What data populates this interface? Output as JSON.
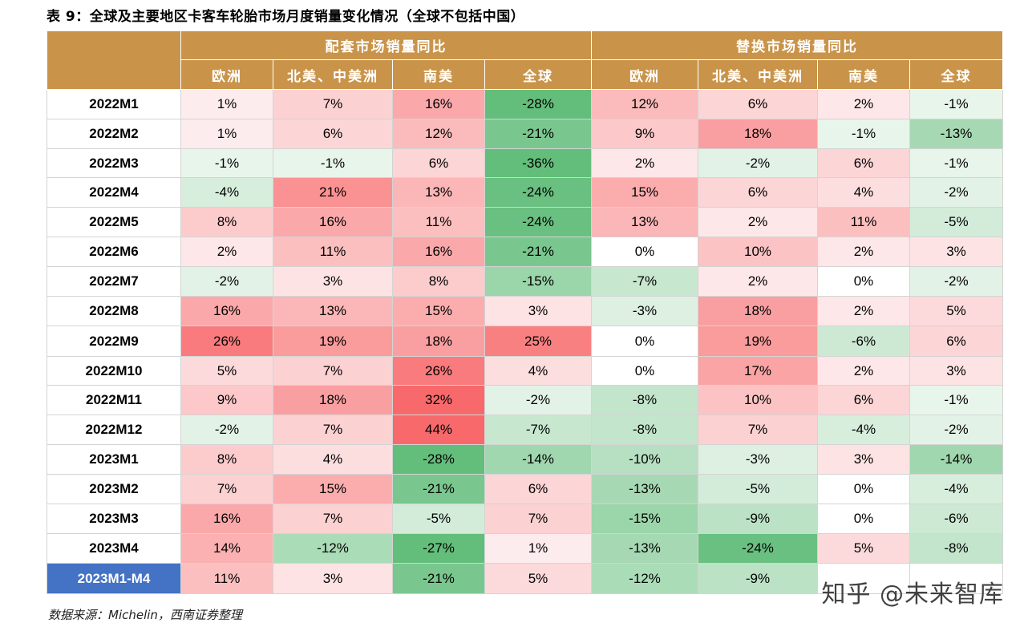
{
  "title": "表 9：全球及主要地区卡客车轮胎市场月度销量变化情况（全球不包括中国）",
  "groups": [
    "配套市场销量同比",
    "替换市场销量同比"
  ],
  "subheaders": [
    "欧洲",
    "北美、中美洲",
    "南美",
    "全球",
    "欧洲",
    "北美、中美洲",
    "南美",
    "全球"
  ],
  "rows": [
    {
      "label": "2022M1",
      "values": [
        1,
        7,
        16,
        -28,
        12,
        6,
        2,
        -1
      ]
    },
    {
      "label": "2022M2",
      "values": [
        1,
        6,
        12,
        -21,
        9,
        18,
        -1,
        -13
      ]
    },
    {
      "label": "2022M3",
      "values": [
        -1,
        -1,
        6,
        -36,
        2,
        -2,
        6,
        -1
      ]
    },
    {
      "label": "2022M4",
      "values": [
        -4,
        21,
        13,
        -24,
        15,
        6,
        4,
        -2
      ]
    },
    {
      "label": "2022M5",
      "values": [
        8,
        16,
        11,
        -24,
        13,
        2,
        11,
        -5
      ]
    },
    {
      "label": "2022M6",
      "values": [
        2,
        11,
        16,
        -21,
        0,
        10,
        2,
        3
      ]
    },
    {
      "label": "2022M7",
      "values": [
        -2,
        3,
        8,
        -15,
        -7,
        2,
        0,
        -2
      ]
    },
    {
      "label": "2022M8",
      "values": [
        16,
        13,
        15,
        3,
        -3,
        18,
        2,
        5
      ]
    },
    {
      "label": "2022M9",
      "values": [
        26,
        19,
        18,
        25,
        0,
        19,
        -6,
        6
      ]
    },
    {
      "label": "2022M10",
      "values": [
        5,
        7,
        26,
        4,
        0,
        17,
        2,
        3
      ]
    },
    {
      "label": "2022M11",
      "values": [
        9,
        18,
        32,
        -2,
        -8,
        10,
        6,
        -1
      ]
    },
    {
      "label": "2022M12",
      "values": [
        -2,
        7,
        44,
        -7,
        -8,
        7,
        -4,
        -2
      ]
    },
    {
      "label": "2023M1",
      "values": [
        8,
        4,
        -28,
        -14,
        -10,
        -3,
        3,
        -14
      ]
    },
    {
      "label": "2023M2",
      "values": [
        7,
        15,
        -21,
        6,
        -13,
        -5,
        0,
        -4
      ]
    },
    {
      "label": "2023M3",
      "values": [
        16,
        7,
        -5,
        7,
        -15,
        -9,
        0,
        -6
      ]
    },
    {
      "label": "2023M4",
      "values": [
        14,
        -12,
        -27,
        1,
        -13,
        -24,
        5,
        -8
      ]
    },
    {
      "label": "2023M1-M4",
      "values": [
        11,
        3,
        -21,
        5,
        -12,
        -9,
        null,
        null
      ],
      "highlight": true
    }
  ],
  "colors": {
    "header": "#c9944a",
    "highlight_row": "#4472c4",
    "positive_max": "#f8696b",
    "negative_max": "#63be7b"
  },
  "source": "数据来源：Michelin，西南证券整理",
  "watermark": "知乎 @未来智库"
}
